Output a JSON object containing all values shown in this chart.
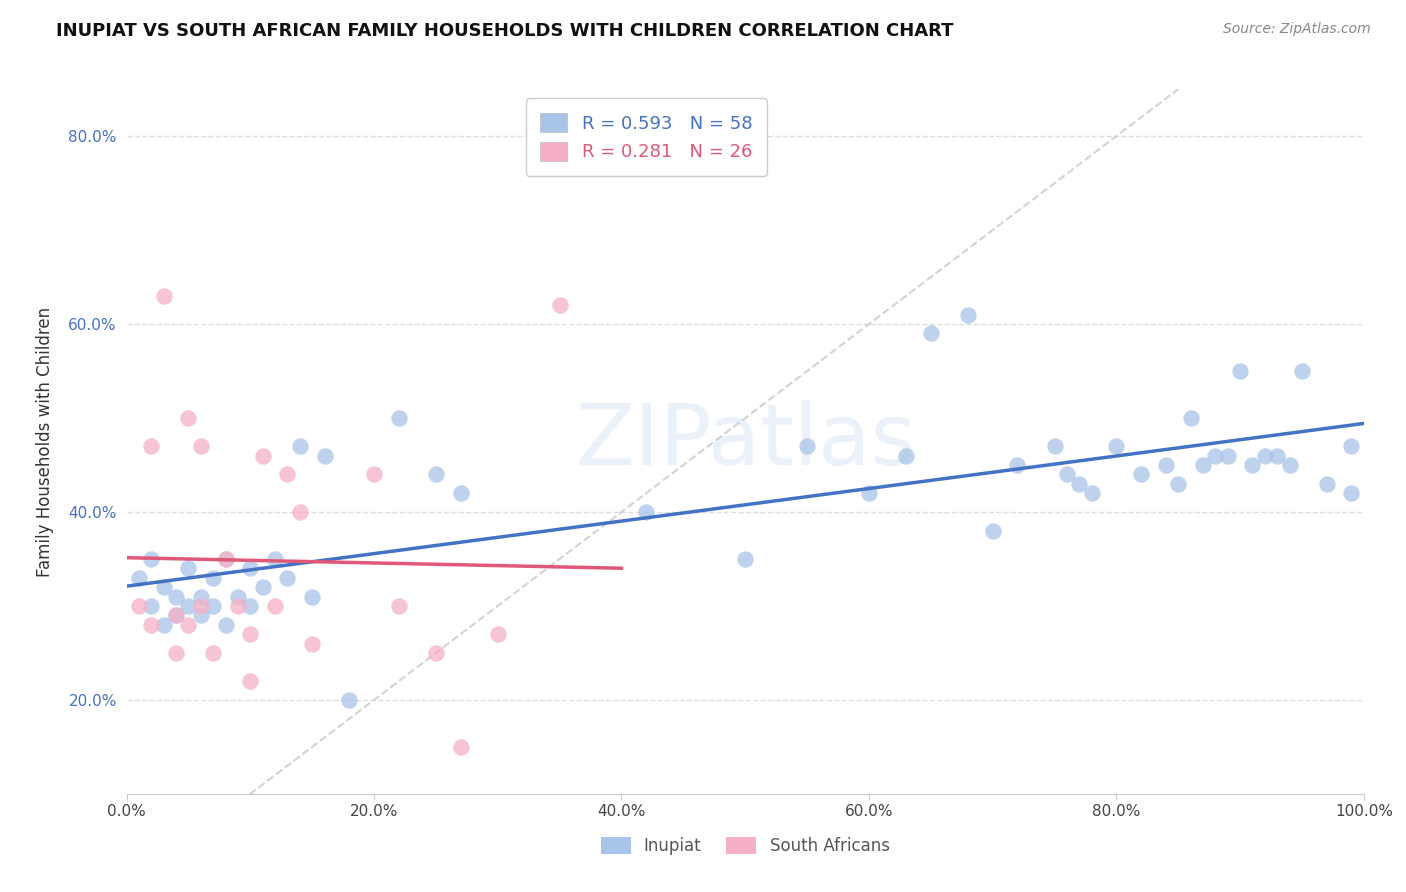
{
  "title": "INUPIAT VS SOUTH AFRICAN FAMILY HOUSEHOLDS WITH CHILDREN CORRELATION CHART",
  "source": "Source: ZipAtlas.com",
  "ylabel": "Family Households with Children",
  "watermark": "ZIPatlas",
  "inupiat_R": 0.593,
  "inupiat_N": 58,
  "sa_R": 0.281,
  "sa_N": 26,
  "inupiat_color": "#a8c4e8",
  "inupiat_line_color": "#4472c4",
  "sa_color": "#f5b0c5",
  "sa_line_color": "#e05878",
  "diagonal_color": "#cccccc",
  "inupiat_x": [
    1,
    2,
    2,
    3,
    3,
    4,
    4,
    5,
    5,
    6,
    6,
    7,
    7,
    8,
    8,
    9,
    10,
    10,
    11,
    12,
    13,
    14,
    15,
    16,
    18,
    22,
    25,
    27,
    42,
    50,
    55,
    60,
    63,
    65,
    68,
    70,
    72,
    75,
    76,
    77,
    78,
    80,
    82,
    84,
    85,
    86,
    87,
    88,
    89,
    90,
    91,
    92,
    93,
    94,
    95,
    97,
    99,
    99
  ],
  "inupiat_y": [
    33,
    30,
    35,
    28,
    32,
    31,
    29,
    34,
    30,
    29,
    31,
    33,
    30,
    28,
    35,
    31,
    34,
    30,
    32,
    35,
    33,
    47,
    31,
    46,
    20,
    50,
    44,
    42,
    40,
    35,
    47,
    42,
    46,
    59,
    61,
    38,
    45,
    47,
    44,
    43,
    42,
    47,
    44,
    45,
    43,
    50,
    45,
    46,
    46,
    55,
    45,
    46,
    46,
    45,
    55,
    43,
    47,
    42
  ],
  "sa_x": [
    1,
    2,
    2,
    3,
    4,
    4,
    5,
    5,
    6,
    6,
    7,
    8,
    9,
    10,
    10,
    11,
    12,
    13,
    14,
    15,
    20,
    22,
    25,
    27,
    30,
    35
  ],
  "sa_y": [
    30,
    28,
    47,
    63,
    25,
    29,
    50,
    28,
    47,
    30,
    25,
    35,
    30,
    27,
    22,
    46,
    30,
    44,
    40,
    26,
    44,
    30,
    25,
    15,
    27,
    62
  ],
  "xlim": [
    0,
    100
  ],
  "ylim": [
    10,
    85
  ],
  "xticks": [
    0,
    20,
    40,
    60,
    80,
    100
  ],
  "yticks": [
    20,
    40,
    60,
    80
  ],
  "xtick_labels": [
    "0.0%",
    "20.0%",
    "40.0%",
    "60.0%",
    "80.0%",
    "100.0%"
  ],
  "ytick_labels": [
    "20.0%",
    "40.0%",
    "60.0%",
    "80.0%"
  ],
  "legend_label_inupiat": "Inupiat",
  "legend_label_sa": "South Africans",
  "title_fontsize": 13,
  "source_fontsize": 10,
  "tick_fontsize": 11,
  "ylabel_fontsize": 12
}
